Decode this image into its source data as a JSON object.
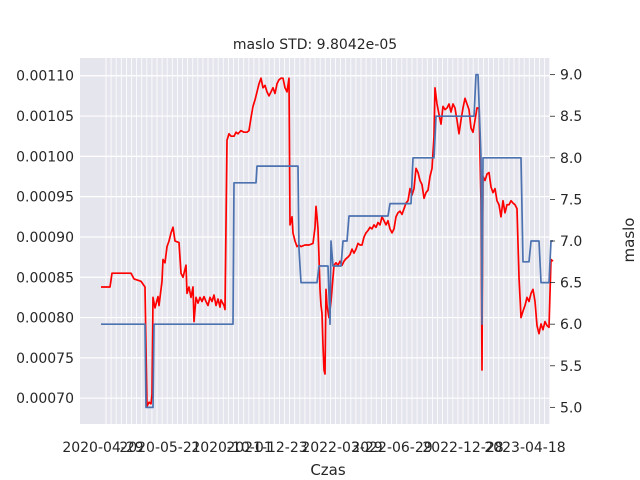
{
  "chart_data": {
    "type": "line",
    "title": "maslo STD: 9.8042e-05",
    "xlabel": "Czas",
    "y2label": "maslo",
    "x_ticks": [
      "2020-04-29",
      "2020-05-21",
      "2020-10-01",
      "2021-12-23",
      "2022-03-29",
      "2022-06-29",
      "2022-12-28",
      "2023-04-18"
    ],
    "ylim": [
      0.000668,
      0.001122
    ],
    "y_ticks": [
      "0.00070",
      "0.00075",
      "0.00080",
      "0.00085",
      "0.00090",
      "0.00095",
      "0.00100",
      "0.00105",
      "0.00110"
    ],
    "y2lim": [
      4.8,
      9.2
    ],
    "y2_ticks": [
      "5.0",
      "5.5",
      "6.0",
      "6.5",
      "7.0",
      "7.5",
      "8.0",
      "8.5",
      "9.0"
    ],
    "grid": true,
    "background": "#e5e5ee",
    "series": [
      {
        "axis": "left",
        "color": "#ff0000",
        "points": [
          [
            0,
            0.000838
          ],
          [
            9,
            0.000838
          ],
          [
            11,
            0.000855
          ],
          [
            30,
            0.000855
          ],
          [
            33,
            0.000848
          ],
          [
            40,
            0.000845
          ],
          [
            44,
            0.000838
          ],
          [
            46,
            0.00069
          ],
          [
            48,
            0.000695
          ],
          [
            50,
            0.000693
          ],
          [
            51,
            0.000705
          ],
          [
            52,
            0.000825
          ],
          [
            54,
            0.000812
          ],
          [
            57,
            0.000826
          ],
          [
            58,
            0.000815
          ],
          [
            61,
            0.000845
          ],
          [
            62,
            0.000872
          ],
          [
            64,
            0.000868
          ],
          [
            66,
            0.000888
          ],
          [
            68,
            0.000895
          ],
          [
            70,
            0.000905
          ],
          [
            72,
            0.000912
          ],
          [
            74,
            0.000895
          ],
          [
            78,
            0.000893
          ],
          [
            80,
            0.000855
          ],
          [
            82,
            0.00085
          ],
          [
            85,
            0.000865
          ],
          [
            86,
            0.00083
          ],
          [
            88,
            0.000838
          ],
          [
            90,
            0.000825
          ],
          [
            92,
            0.000838
          ],
          [
            93,
            0.000795
          ],
          [
            95,
            0.000825
          ],
          [
            97,
            0.000818
          ],
          [
            99,
            0.000825
          ],
          [
            101,
            0.00082
          ],
          [
            103,
            0.000826
          ],
          [
            105,
            0.00082
          ],
          [
            107,
            0.000815
          ],
          [
            109,
            0.000825
          ],
          [
            111,
            0.00082
          ],
          [
            113,
            0.000828
          ],
          [
            115,
            0.000815
          ],
          [
            117,
            0.000823
          ],
          [
            119,
            0.000813
          ],
          [
            120,
            0.000822
          ],
          [
            123,
            0.000815
          ],
          [
            124,
            0.00081
          ],
          [
            126,
            0.00102
          ],
          [
            128,
            0.001028
          ],
          [
            130,
            0.001025
          ],
          [
            133,
            0.001025
          ],
          [
            135,
            0.00103
          ],
          [
            137,
            0.001028
          ],
          [
            140,
            0.001032
          ],
          [
            143,
            0.00103
          ],
          [
            146,
            0.00103
          ],
          [
            148,
            0.001032
          ],
          [
            150,
            0.001048
          ],
          [
            152,
            0.001062
          ],
          [
            154,
            0.00107
          ],
          [
            156,
            0.00108
          ],
          [
            158,
            0.00109
          ],
          [
            160,
            0.001097
          ],
          [
            162,
            0.001085
          ],
          [
            164,
            0.001088
          ],
          [
            166,
            0.00108
          ],
          [
            168,
            0.001075
          ],
          [
            170,
            0.00108
          ],
          [
            172,
            0.001085
          ],
          [
            174,
            0.001078
          ],
          [
            176,
            0.00109
          ],
          [
            178,
            0.001095
          ],
          [
            180,
            0.001097
          ],
          [
            182,
            0.001097
          ],
          [
            184,
            0.001085
          ],
          [
            186,
            0.00108
          ],
          [
            188,
            0.001097
          ],
          [
            189,
            0.000915
          ],
          [
            191,
            0.000925
          ],
          [
            192,
            0.000905
          ],
          [
            194,
            0.000895
          ],
          [
            196,
            0.000888
          ],
          [
            198,
            0.00089
          ],
          [
            200,
            0.000888
          ],
          [
            204,
            0.00089
          ],
          [
            208,
            0.00089
          ],
          [
            212,
            0.000892
          ],
          [
            214,
            0.000912
          ],
          [
            215,
            0.000938
          ],
          [
            216,
            0.000925
          ],
          [
            217,
            0.00091
          ],
          [
            218,
            0.000875
          ],
          [
            219,
            0.000835
          ],
          [
            220,
            0.000815
          ],
          [
            221,
            0.000805
          ],
          [
            222,
            0.000765
          ],
          [
            223,
            0.000735
          ],
          [
            224,
            0.00073
          ],
          [
            225,
            0.000835
          ],
          [
            226,
            0.000815
          ],
          [
            228,
            0.0008
          ],
          [
            230,
            0.00082
          ],
          [
            232,
            0.00085
          ],
          [
            233,
            0.000865
          ],
          [
            235,
            0.000868
          ],
          [
            237,
            0.000865
          ],
          [
            239,
            0.00087
          ],
          [
            241,
            0.000865
          ],
          [
            243,
            0.00087
          ],
          [
            245,
            0.000873
          ],
          [
            247,
            0.000875
          ],
          [
            249,
            0.000878
          ],
          [
            251,
            0.000885
          ],
          [
            253,
            0.00088
          ],
          [
            255,
            0.000885
          ],
          [
            257,
            0.000892
          ],
          [
            259,
            0.00089
          ],
          [
            261,
            0.00089
          ],
          [
            263,
            0.0009
          ],
          [
            265,
            0.000905
          ],
          [
            267,
            0.000908
          ],
          [
            269,
            0.000912
          ],
          [
            271,
            0.00091
          ],
          [
            273,
            0.000915
          ],
          [
            275,
            0.000912
          ],
          [
            277,
            0.000918
          ],
          [
            279,
            0.000915
          ],
          [
            281,
            0.000925
          ],
          [
            283,
            0.00092
          ],
          [
            285,
            0.000915
          ],
          [
            287,
            0.00092
          ],
          [
            289,
            0.00091
          ],
          [
            291,
            0.000905
          ],
          [
            293,
            0.00091
          ],
          [
            295,
            0.000925
          ],
          [
            297,
            0.00093
          ],
          [
            299,
            0.000932
          ],
          [
            301,
            0.000928
          ],
          [
            303,
            0.000935
          ],
          [
            305,
            0.000942
          ],
          [
            307,
            0.000945
          ],
          [
            309,
            0.00096
          ],
          [
            311,
            0.000952
          ],
          [
            313,
            0.00096
          ],
          [
            315,
            0.000985
          ],
          [
            317,
            0.00098
          ],
          [
            319,
            0.00097
          ],
          [
            321,
            0.000965
          ],
          [
            323,
            0.000948
          ],
          [
            325,
            0.000955
          ],
          [
            327,
            0.000958
          ],
          [
            329,
            0.000975
          ],
          [
            331,
            0.000985
          ],
          [
            333,
            0.001025
          ],
          [
            334,
            0.001085
          ],
          [
            336,
            0.001065
          ],
          [
            338,
            0.001052
          ],
          [
            340,
            0.00104
          ],
          [
            342,
            0.001062
          ],
          [
            344,
            0.001058
          ],
          [
            346,
            0.00106
          ],
          [
            348,
            0.001065
          ],
          [
            350,
            0.001055
          ],
          [
            352,
            0.001065
          ],
          [
            354,
            0.00106
          ],
          [
            356,
            0.001045
          ],
          [
            358,
            0.001028
          ],
          [
            360,
            0.001045
          ],
          [
            362,
            0.00106
          ],
          [
            364,
            0.001072
          ],
          [
            366,
            0.001065
          ],
          [
            368,
            0.001058
          ],
          [
            370,
            0.001035
          ],
          [
            372,
            0.00103
          ],
          [
            374,
            0.001045
          ],
          [
            376,
            0.00106
          ],
          [
            378,
            0.00106
          ],
          [
            380,
            0.000945
          ],
          [
            381,
            0.000735
          ],
          [
            382,
            0.000975
          ],
          [
            384,
            0.00097
          ],
          [
            386,
            0.000978
          ],
          [
            388,
            0.00098
          ],
          [
            390,
            0.000962
          ],
          [
            392,
            0.000955
          ],
          [
            394,
            0.00096
          ],
          [
            396,
            0.000945
          ],
          [
            398,
            0.00094
          ],
          [
            400,
            0.000925
          ],
          [
            402,
            0.000945
          ],
          [
            404,
            0.00093
          ],
          [
            406,
            0.00094
          ],
          [
            408,
            0.00094
          ],
          [
            410,
            0.000945
          ],
          [
            412,
            0.000942
          ],
          [
            414,
            0.00094
          ],
          [
            416,
            0.000935
          ],
          [
            418,
            0.00085
          ],
          [
            420,
            0.0008
          ],
          [
            422,
            0.000808
          ],
          [
            424,
            0.000815
          ],
          [
            426,
            0.000825
          ],
          [
            428,
            0.00082
          ],
          [
            430,
            0.00083
          ],
          [
            432,
            0.000835
          ],
          [
            434,
            0.00082
          ],
          [
            436,
            0.00079
          ],
          [
            438,
            0.00078
          ],
          [
            440,
            0.000792
          ],
          [
            442,
            0.000785
          ],
          [
            444,
            0.000795
          ],
          [
            446,
            0.00079
          ],
          [
            448,
            0.000788
          ],
          [
            450,
            0.000872
          ],
          [
            452,
            0.00087
          ]
        ]
      },
      {
        "axis": "right",
        "color": "#4c72b0",
        "points": [
          [
            0,
            6.0
          ],
          [
            44,
            6.0
          ],
          [
            45,
            5.0
          ],
          [
            52,
            5.0
          ],
          [
            53,
            6.0
          ],
          [
            132,
            6.0
          ],
          [
            133,
            7.7
          ],
          [
            155,
            7.7
          ],
          [
            156,
            7.9
          ],
          [
            197,
            7.9
          ],
          [
            198,
            6.9
          ],
          [
            200,
            6.5
          ],
          [
            216,
            6.5
          ],
          [
            218,
            6.7
          ],
          [
            227,
            6.7
          ],
          [
            229,
            6.0
          ],
          [
            230,
            7.0
          ],
          [
            232,
            6.7
          ],
          [
            240,
            6.7
          ],
          [
            242,
            7.0
          ],
          [
            246,
            7.0
          ],
          [
            248,
            7.3
          ],
          [
            287,
            7.3
          ],
          [
            289,
            7.45
          ],
          [
            310,
            7.45
          ],
          [
            312,
            8.0
          ],
          [
            333,
            8.0
          ],
          [
            335,
            8.5
          ],
          [
            373,
            8.5
          ],
          [
            375,
            9.0
          ],
          [
            377,
            9.0
          ],
          [
            380,
            8.0
          ],
          [
            381,
            6.0
          ],
          [
            382,
            8.0
          ],
          [
            420,
            8.0
          ],
          [
            422,
            6.75
          ],
          [
            428,
            6.75
          ],
          [
            430,
            7.0
          ],
          [
            438,
            7.0
          ],
          [
            440,
            6.5
          ],
          [
            448,
            6.5
          ],
          [
            450,
            7.0
          ],
          [
            452,
            7.0
          ]
        ]
      }
    ]
  }
}
